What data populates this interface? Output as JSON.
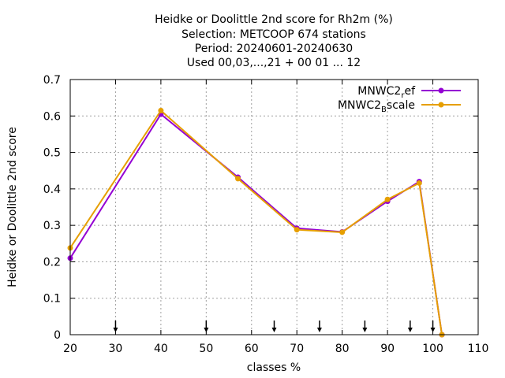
{
  "chart_data": {
    "type": "line",
    "title_lines": [
      "Heidke or Doolittle 2nd score  for Rh2m (%)",
      "Selection: METCOOP    674 stations",
      "Period: 20240601-20240630",
      "Used 00,03,...,21 + 00 01 ... 12"
    ],
    "xlabel": "classes %",
    "ylabel": "Heidke or Doolittle 2nd score",
    "xlim": [
      20,
      110
    ],
    "ylim": [
      0,
      0.7
    ],
    "xticks": [
      20,
      30,
      40,
      50,
      60,
      70,
      80,
      90,
      100,
      110
    ],
    "yticks": [
      0,
      0.1,
      0.2,
      0.3,
      0.4,
      0.5,
      0.6,
      0.7
    ],
    "xtick_labels": [
      "20",
      "30",
      "40",
      "50",
      "60",
      "70",
      "80",
      "90",
      "100",
      "110"
    ],
    "ytick_labels": [
      "0",
      "0.1",
      "0.2",
      "0.3",
      "0.4",
      "0.5",
      "0.6",
      "0.7"
    ],
    "grid": true,
    "legend_position": "top-right",
    "arrow_markers_x": [
      30,
      50,
      65,
      75,
      85,
      95,
      100
    ],
    "series": [
      {
        "name": "MNWC2_ref",
        "name_base": "MNWC2",
        "name_sub": "r",
        "name_rest": "ef",
        "color": "#9400d3",
        "x": [
          20,
          40,
          57,
          70,
          80,
          90,
          97,
          102
        ],
        "y": [
          0.21,
          0.605,
          0.432,
          0.292,
          0.282,
          0.366,
          0.42,
          0.0
        ]
      },
      {
        "name": "MNWC2_Bscale",
        "name_base": "MNWC2",
        "name_sub": "B",
        "name_rest": "scale",
        "color": "#e69f00",
        "x": [
          20,
          40,
          57,
          70,
          80,
          90,
          97,
          102
        ],
        "y": [
          0.238,
          0.615,
          0.428,
          0.288,
          0.281,
          0.371,
          0.416,
          0.0
        ]
      }
    ]
  }
}
